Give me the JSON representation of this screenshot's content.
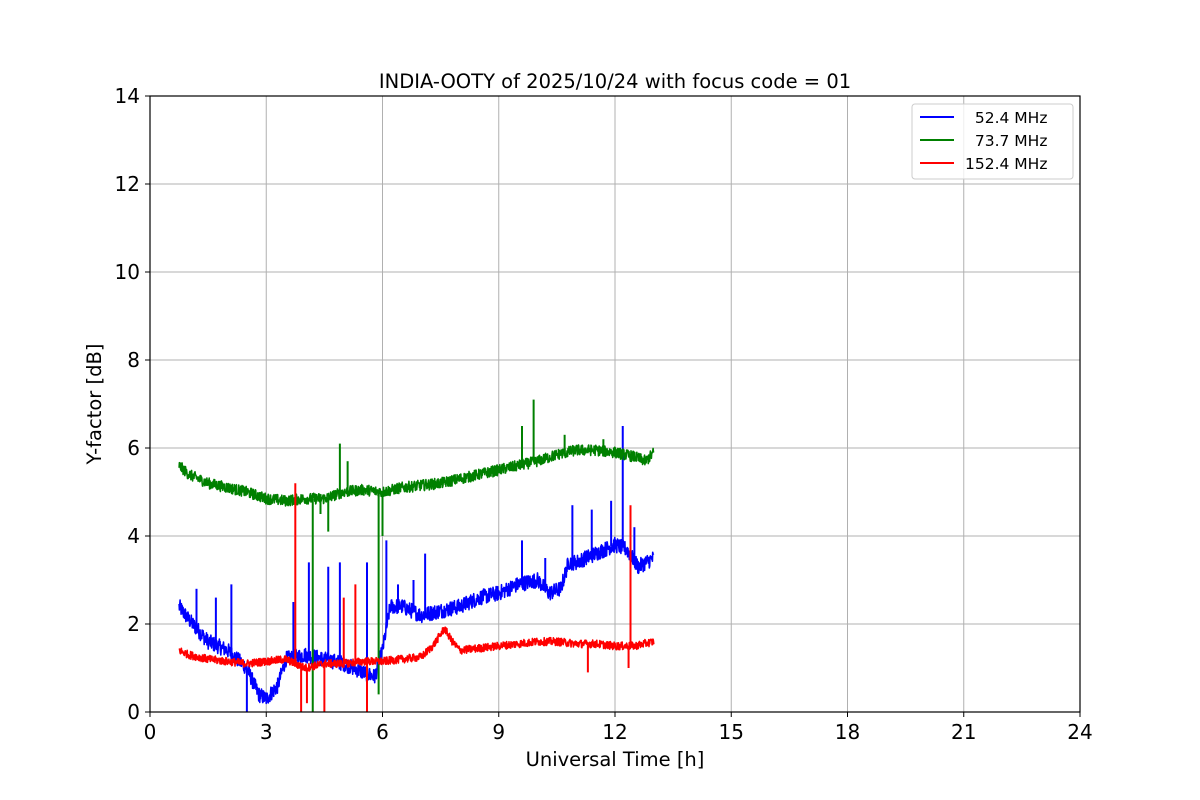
{
  "chart_data": {
    "type": "line",
    "title": "INDIA-OOTY of 2025/10/24 with focus code = 01",
    "xlabel": "Universal Time [h]",
    "ylabel": "Y-factor [dB]",
    "xlim": [
      0,
      24
    ],
    "ylim": [
      0,
      14
    ],
    "xticks": [
      0,
      3,
      6,
      9,
      12,
      15,
      18,
      21,
      24
    ],
    "yticks": [
      0,
      2,
      4,
      6,
      8,
      10,
      12,
      14
    ],
    "grid": true,
    "legend_position": "top-right",
    "series": [
      {
        "name": "52.4 MHz",
        "legend_label": "  52.4 MHz",
        "color": "#0000ff",
        "noise": 0.35,
        "x": [
          0.75,
          1.0,
          1.5,
          2.0,
          2.5,
          2.8,
          3.0,
          3.3,
          3.5,
          4.0,
          4.5,
          5.0,
          5.5,
          5.8,
          6.0,
          6.2,
          6.5,
          7.0,
          7.5,
          8.0,
          8.5,
          9.0,
          9.5,
          10.0,
          10.3,
          10.6,
          10.8,
          11.0,
          11.5,
          12.0,
          12.3,
          12.6,
          12.8,
          13.0
        ],
        "y": [
          2.4,
          2.1,
          1.6,
          1.4,
          1.0,
          0.4,
          0.3,
          0.6,
          1.2,
          1.3,
          1.2,
          1.1,
          0.9,
          0.8,
          1.4,
          2.4,
          2.4,
          2.2,
          2.3,
          2.4,
          2.6,
          2.7,
          2.9,
          3.0,
          2.7,
          2.8,
          3.4,
          3.4,
          3.6,
          3.8,
          3.7,
          3.3,
          3.4,
          3.5
        ],
        "spikes": [
          [
            1.2,
            2.8
          ],
          [
            1.7,
            2.6
          ],
          [
            2.1,
            2.9
          ],
          [
            2.5,
            0.0
          ],
          [
            3.7,
            2.5
          ],
          [
            4.1,
            3.4
          ],
          [
            4.6,
            3.3
          ],
          [
            4.9,
            3.4
          ],
          [
            5.6,
            3.4
          ],
          [
            6.1,
            3.9
          ],
          [
            6.4,
            2.9
          ],
          [
            6.8,
            3.0
          ],
          [
            7.1,
            3.6
          ],
          [
            7.7,
            2.3
          ],
          [
            9.6,
            3.9
          ],
          [
            10.2,
            3.5
          ],
          [
            10.9,
            4.7
          ],
          [
            11.4,
            4.6
          ],
          [
            11.9,
            4.8
          ],
          [
            12.2,
            6.5
          ],
          [
            12.5,
            4.2
          ]
        ]
      },
      {
        "name": "73.7 MHz",
        "legend_label": "  73.7 MHz",
        "color": "#008000",
        "noise": 0.25,
        "x": [
          0.75,
          1.0,
          1.5,
          2.0,
          2.5,
          3.0,
          3.5,
          4.0,
          4.5,
          5.0,
          5.5,
          6.0,
          6.5,
          7.0,
          7.5,
          8.0,
          8.5,
          9.0,
          9.5,
          10.0,
          10.5,
          11.0,
          11.5,
          12.0,
          12.5,
          12.8,
          13.0
        ],
        "y": [
          5.6,
          5.4,
          5.2,
          5.1,
          5.0,
          4.85,
          4.8,
          4.85,
          4.85,
          5.0,
          5.05,
          5.0,
          5.1,
          5.15,
          5.2,
          5.3,
          5.4,
          5.5,
          5.6,
          5.7,
          5.85,
          5.95,
          5.95,
          5.9,
          5.8,
          5.7,
          5.9
        ],
        "spikes": [
          [
            4.2,
            0.0
          ],
          [
            4.4,
            4.5
          ],
          [
            4.6,
            4.1
          ],
          [
            4.9,
            6.1
          ],
          [
            5.1,
            5.7
          ],
          [
            5.9,
            0.4
          ],
          [
            6.0,
            4.0
          ],
          [
            9.6,
            6.5
          ],
          [
            9.9,
            7.1
          ],
          [
            10.7,
            6.3
          ],
          [
            11.7,
            6.2
          ]
        ]
      },
      {
        "name": "152.4 MHz",
        "legend_label": "152.4 MHz",
        "color": "#ff0000",
        "noise": 0.18,
        "x": [
          0.75,
          1.0,
          1.5,
          2.0,
          2.5,
          3.0,
          3.5,
          4.0,
          4.5,
          5.0,
          5.5,
          6.0,
          6.5,
          7.0,
          7.3,
          7.6,
          7.8,
          8.0,
          8.5,
          9.0,
          9.5,
          10.0,
          10.5,
          11.0,
          11.5,
          12.0,
          12.5,
          13.0
        ],
        "y": [
          1.4,
          1.3,
          1.2,
          1.15,
          1.1,
          1.15,
          1.2,
          1.0,
          1.1,
          1.1,
          1.15,
          1.15,
          1.2,
          1.25,
          1.5,
          1.9,
          1.6,
          1.4,
          1.45,
          1.5,
          1.55,
          1.6,
          1.6,
          1.55,
          1.55,
          1.5,
          1.5,
          1.6
        ]
      }
    ],
    "extra_spikes": [
      {
        "series": 2,
        "points": [
          [
            3.75,
            5.2
          ],
          [
            3.9,
            0.0
          ],
          [
            4.05,
            0.2
          ],
          [
            4.5,
            0.0
          ],
          [
            5.0,
            2.6
          ],
          [
            5.3,
            2.9
          ],
          [
            5.6,
            0.0
          ],
          [
            11.3,
            0.9
          ],
          [
            12.4,
            4.7
          ],
          [
            12.35,
            1.0
          ]
        ]
      }
    ]
  }
}
